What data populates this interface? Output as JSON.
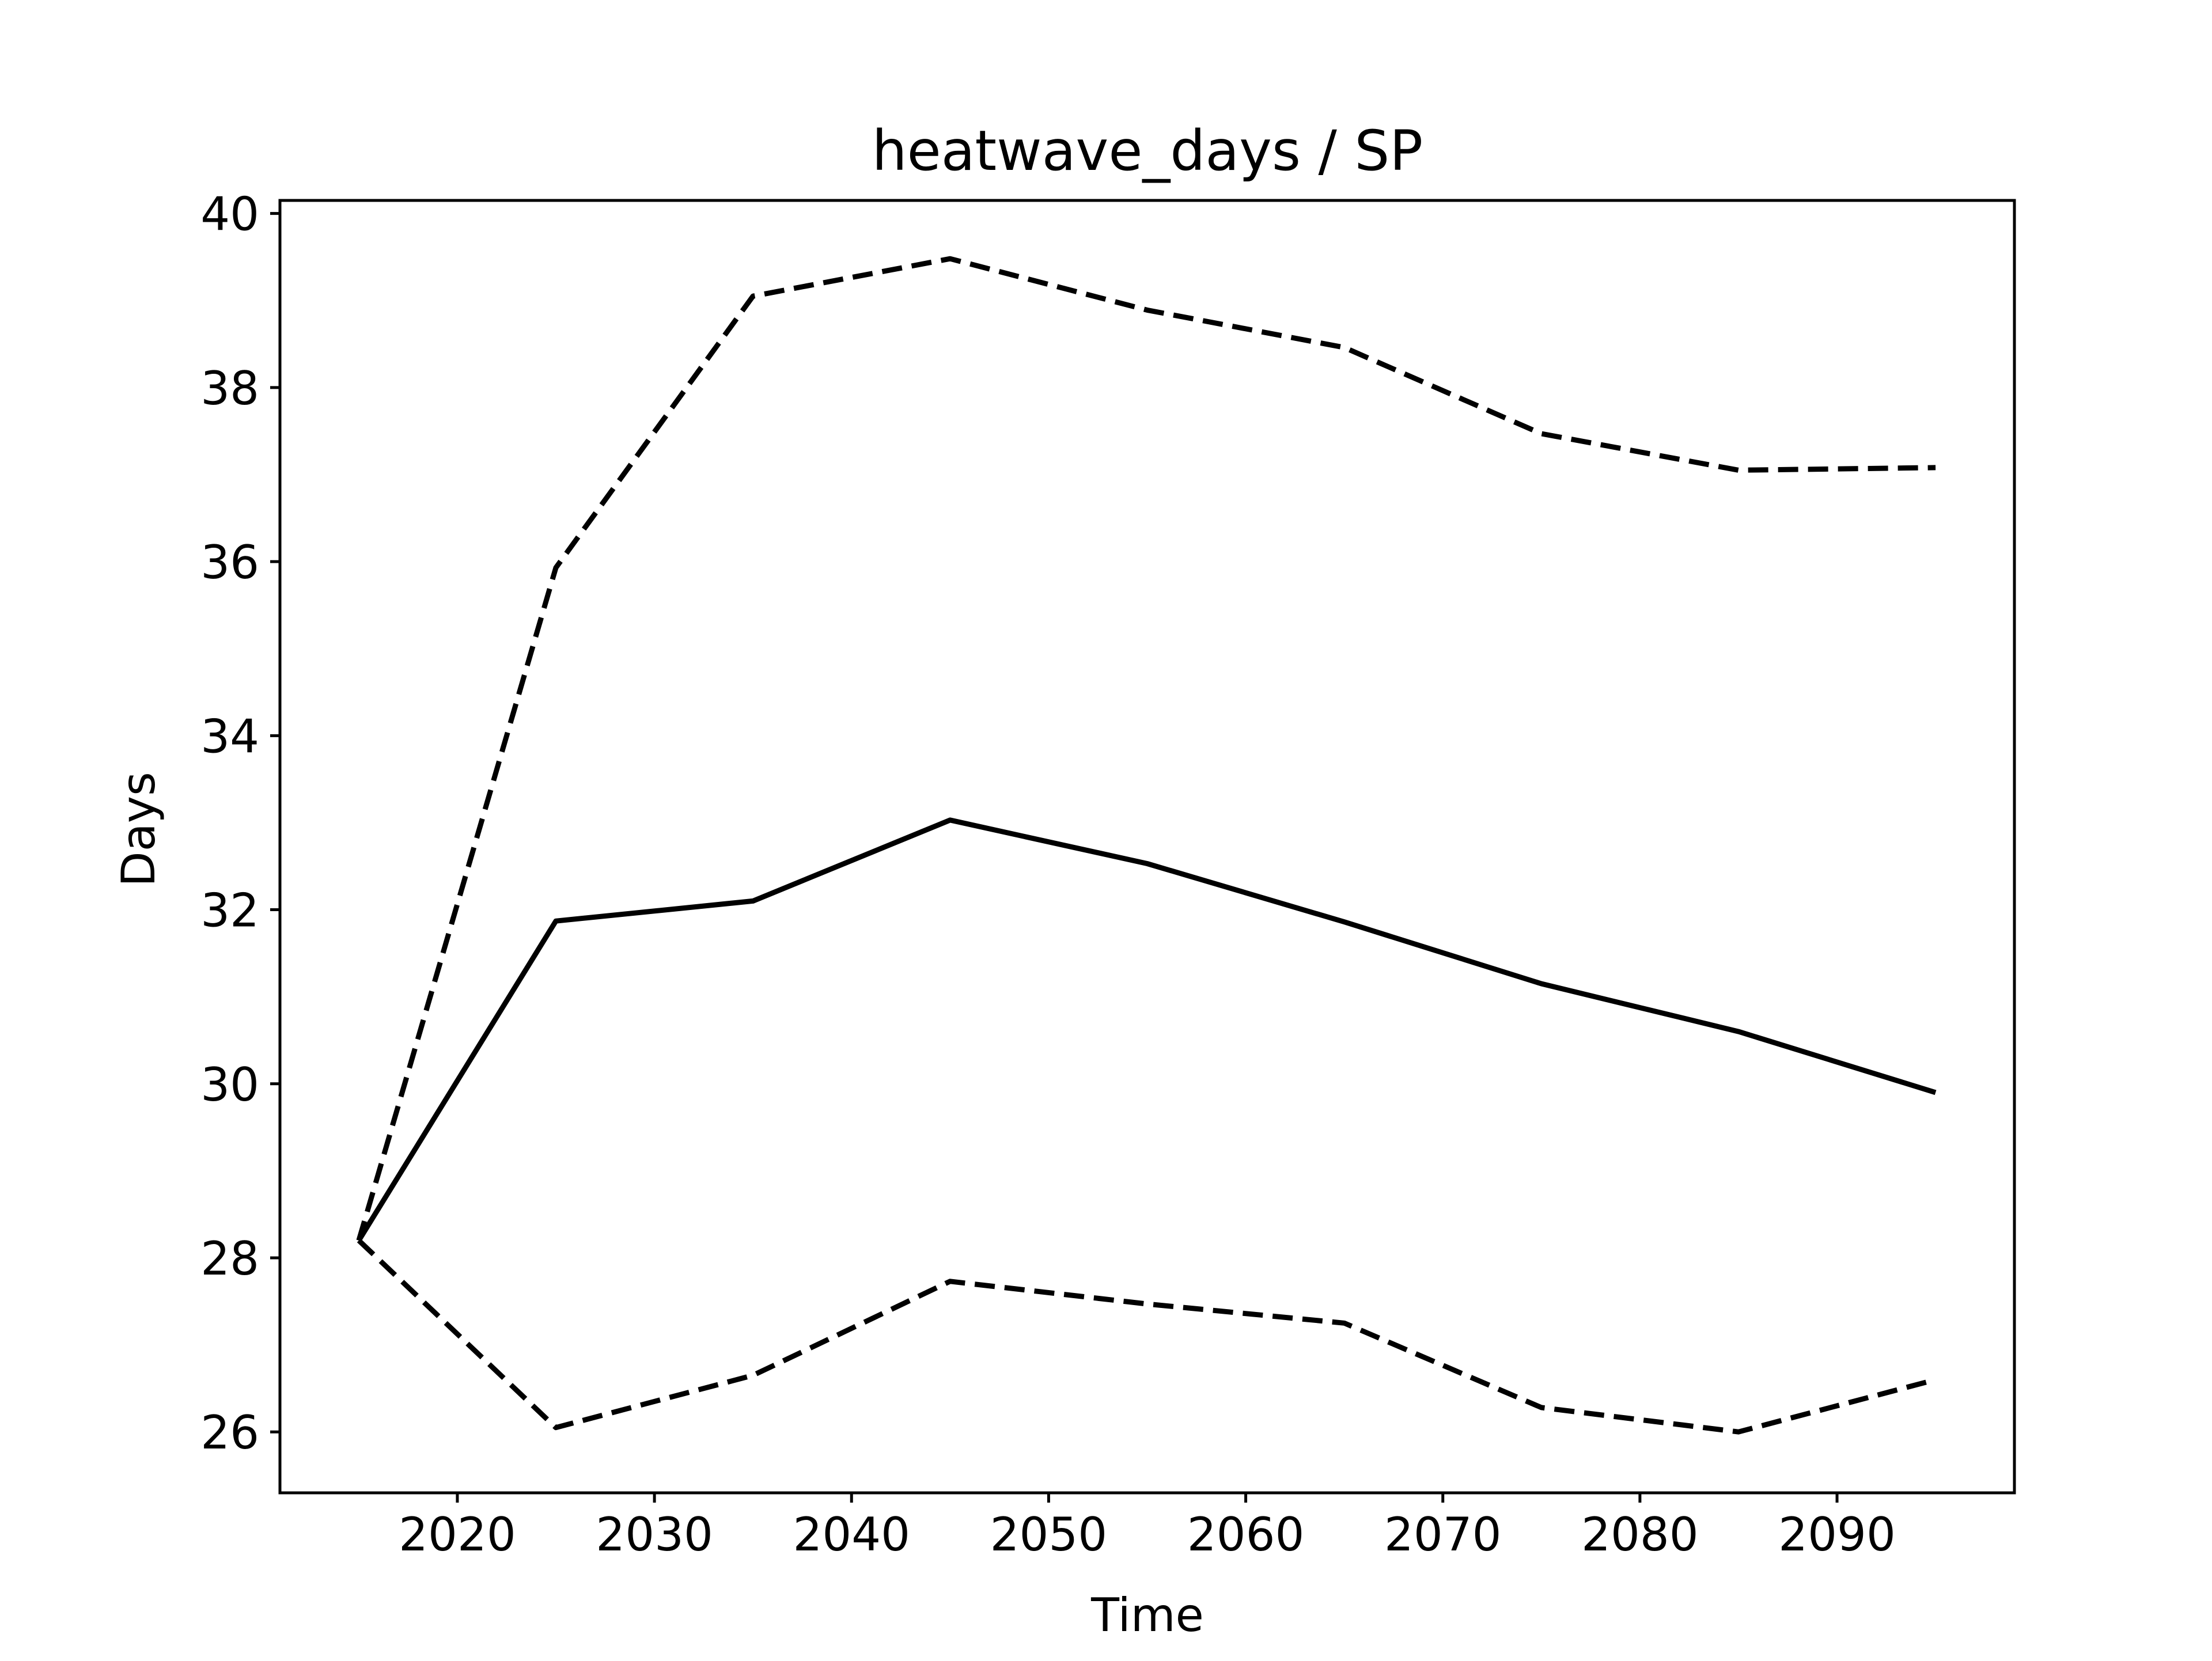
{
  "chart_data": {
    "type": "line",
    "title": "heatwave_days / SP",
    "xlabel": "Time",
    "ylabel": "Days",
    "xlim": [
      2011,
      2099
    ],
    "ylim": [
      25.3,
      40.15
    ],
    "xticks": [
      2020,
      2030,
      2040,
      2050,
      2060,
      2070,
      2080,
      2090
    ],
    "yticks": [
      26,
      28,
      30,
      32,
      34,
      36,
      38,
      40
    ],
    "grid": false,
    "x": [
      2015,
      2025,
      2035,
      2045,
      2055,
      2065,
      2075,
      2085,
      2095
    ],
    "series": [
      {
        "values": [
          28.2,
          31.87,
          32.1,
          33.03,
          32.53,
          31.86,
          31.15,
          30.6,
          29.9
        ],
        "style": "solid"
      },
      {
        "values": [
          28.2,
          35.93,
          39.05,
          39.48,
          38.89,
          38.46,
          37.47,
          37.05,
          37.08
        ],
        "style": "dashed"
      },
      {
        "values": [
          28.2,
          26.05,
          26.65,
          27.73,
          27.47,
          27.25,
          26.28,
          26.0,
          26.6
        ],
        "style": "dashed"
      }
    ],
    "line_color": "#000000"
  }
}
